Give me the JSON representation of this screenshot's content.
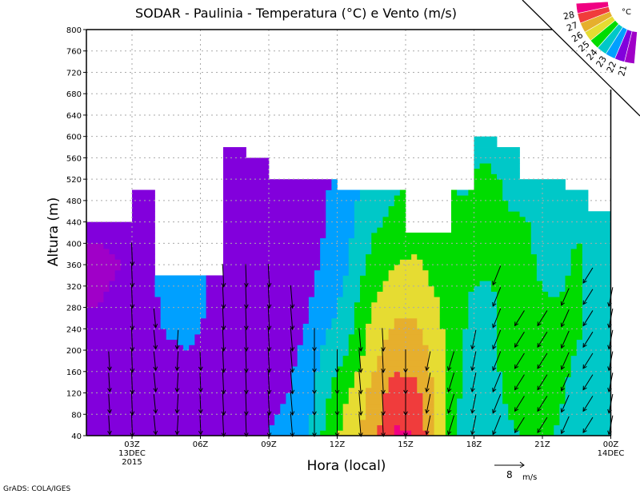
{
  "chart_data": {
    "type": "heatmap",
    "title": "SODAR - Paulinia - Temperatura (°C) e Vento (m/s)",
    "xlabel": "Hora (local)",
    "ylabel": "Altura (m)",
    "xlim": [
      1,
      24
    ],
    "ylim": [
      40,
      800
    ],
    "grid": true,
    "y_ticks": [
      40,
      80,
      120,
      160,
      200,
      240,
      280,
      320,
      360,
      400,
      440,
      480,
      520,
      560,
      600,
      640,
      680,
      720,
      760,
      800
    ],
    "x_ticks": [
      {
        "hour": 3,
        "label": "03Z",
        "sub": [
          "13DEC",
          "2015"
        ]
      },
      {
        "hour": 6,
        "label": "06Z",
        "sub": []
      },
      {
        "hour": 9,
        "label": "09Z",
        "sub": []
      },
      {
        "hour": 12,
        "label": "12Z",
        "sub": []
      },
      {
        "hour": 15,
        "label": "15Z",
        "sub": []
      },
      {
        "hour": 18,
        "label": "18Z",
        "sub": []
      },
      {
        "hour": 21,
        "label": "21Z",
        "sub": []
      },
      {
        "hour": 24,
        "label": "00Z",
        "sub": [
          "14DEC"
        ]
      }
    ],
    "colorbar": {
      "unit": "°C",
      "levels": [
        21,
        22,
        23,
        24,
        25,
        26,
        27,
        28
      ],
      "colors": [
        "#a000c8",
        "#8200dc",
        "#00a0ff",
        "#00c8c8",
        "#00dc00",
        "#e6dc32",
        "#e6af2d",
        "#f03c3c",
        "#f00082"
      ]
    },
    "heights": [
      40,
      120,
      200,
      280,
      360,
      440,
      520,
      600
    ],
    "column_tops": [
      440,
      440,
      500,
      340,
      340,
      340,
      580,
      560,
      520,
      520,
      520,
      500,
      500,
      500,
      420,
      420,
      500,
      600,
      580,
      520,
      520,
      500,
      460
    ],
    "temperature": [
      [
        21.5,
        21.5,
        21.3,
        21.0,
        20.8,
        21.2
      ],
      [
        21.5,
        21.5,
        21.5,
        21.2,
        21.0,
        21.3
      ],
      [
        21.5,
        21.5,
        21.5,
        21.6,
        21.7,
        21.7,
        21.7
      ],
      [
        21.7,
        21.8,
        21.9,
        22.2,
        22.3
      ],
      [
        21.7,
        21.8,
        22.0,
        22.3,
        22.3
      ],
      [
        21.6,
        21.7,
        21.8,
        21.9,
        21.8
      ],
      [
        21.3,
        21.6,
        21.6,
        21.5,
        21.3,
        21.3,
        21.3,
        21.4
      ],
      [
        21.8,
        21.6,
        21.6,
        21.2,
        21.0,
        21.2,
        21.3
      ],
      [
        22.3,
        21.8,
        21.6,
        21.5,
        21.3,
        21.2,
        21.4
      ],
      [
        22.5,
        22.3,
        22.1,
        21.8,
        21.6,
        21.5,
        21.6
      ],
      [
        24.3,
        23.8,
        23.2,
        22.5,
        22.2,
        22.0,
        21.9
      ],
      [
        25.5,
        25.0,
        24.0,
        23.5,
        23.0,
        22.8,
        22.5
      ],
      [
        26.5,
        26.2,
        25.5,
        25.0,
        24.3,
        23.8,
        23.3
      ],
      [
        28.2,
        27.5,
        26.5,
        25.8,
        25.0,
        24.2,
        23.8
      ],
      [
        28.0,
        27.2,
        26.5,
        25.8,
        25.2,
        24.5
      ],
      [
        25.5,
        25.5,
        25.3,
        25.0,
        24.5,
        24.2
      ],
      [
        23.7,
        23.8,
        24.0,
        24.1,
        24.2,
        24.2,
        23.8
      ],
      [
        23.2,
        23.5,
        23.8,
        23.5,
        24.3,
        24.5,
        24.3,
        23.5
      ],
      [
        23.8,
        24.2,
        24.2,
        24.3,
        24.2,
        24.1,
        23.8,
        23.5
      ],
      [
        24.2,
        24.5,
        24.4,
        24.3,
        24.1,
        24.0,
        23.8
      ],
      [
        24.0,
        24.2,
        24.2,
        24.1,
        23.5,
        23.5,
        23.5
      ],
      [
        23.5,
        23.8,
        24.0,
        24.2,
        24.2,
        23.9,
        22.8
      ],
      [
        23.3,
        23.5,
        23.6,
        23.6,
        23.6,
        23.5
      ]
    ],
    "wind": [
      {
        "hour": 2,
        "u": 0.3,
        "v": -5,
        "max": 200
      },
      {
        "hour": 3,
        "u": 0.2,
        "v": -6,
        "max": 380
      },
      {
        "hour": 4,
        "u": 0.5,
        "v": -5,
        "max": 260
      },
      {
        "hour": 5,
        "u": -0.3,
        "v": -5,
        "max": 220
      },
      {
        "hour": 6,
        "u": 0.2,
        "v": -5,
        "max": 200
      },
      {
        "hour": 7,
        "u": 0.3,
        "v": -6,
        "max": 360
      },
      {
        "hour": 8,
        "u": 0.2,
        "v": -6,
        "max": 340
      },
      {
        "hour": 9,
        "u": 0.3,
        "v": -6,
        "max": 360
      },
      {
        "hour": 10,
        "u": 0.5,
        "v": -6,
        "max": 320
      },
      {
        "hour": 11,
        "u": 0,
        "v": -6,
        "max": 240
      },
      {
        "hour": 12,
        "u": 0,
        "v": -6,
        "max": 200
      },
      {
        "hour": 13,
        "u": 0.5,
        "v": -6,
        "max": 220
      },
      {
        "hour": 14,
        "u": 0.3,
        "v": -6,
        "max": 240
      },
      {
        "hour": 15,
        "u": 0,
        "v": -6,
        "max": 200
      },
      {
        "hour": 16,
        "u": -1,
        "v": -5,
        "max": 180
      },
      {
        "hour": 17,
        "u": -1.5,
        "v": -5,
        "max": 200
      },
      {
        "hour": 18,
        "u": -1,
        "v": -5,
        "max": 240
      },
      {
        "hour": 19,
        "u": -2,
        "v": -5,
        "max": 360
      },
      {
        "hour": 20,
        "u": -2.5,
        "v": -4,
        "max": 260
      },
      {
        "hour": 21,
        "u": -2.5,
        "v": -4,
        "max": 280
      },
      {
        "hour": 22,
        "u": -2,
        "v": -4.5,
        "max": 300
      },
      {
        "hour": 23,
        "u": -2.5,
        "v": -4,
        "max": 340
      },
      {
        "hour": 24,
        "u": -1,
        "v": -5,
        "max": 320
      }
    ],
    "reference_vector": {
      "value": "8",
      "unit": "m/s"
    }
  },
  "footer": "GrADS: COLA/IGES"
}
